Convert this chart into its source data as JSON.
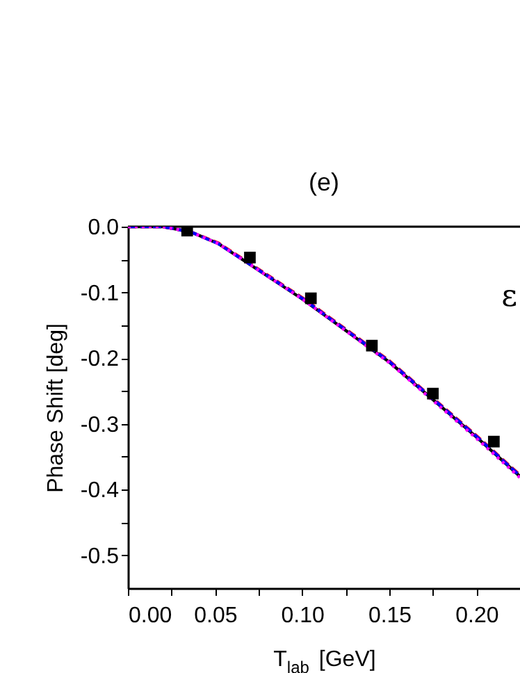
{
  "chart_data": {
    "type": "line",
    "title": "(e)",
    "xlabel": "T$_{lab}$ [GeV]",
    "ylabel": "Phase Shift [deg]",
    "annotations": [
      "ε"
    ],
    "xlim": [
      0,
      0.225
    ],
    "ylim": [
      -0.55,
      0
    ],
    "xticks": [
      {
        "value": 0,
        "label": "0.00"
      },
      {
        "value": 0.025,
        "label": null
      },
      {
        "value": 0.05,
        "label": "0.05"
      },
      {
        "value": 0.075,
        "label": null
      },
      {
        "value": 0.1,
        "label": "0.10"
      },
      {
        "value": 0.125,
        "label": null
      },
      {
        "value": 0.15,
        "label": "0.15"
      },
      {
        "value": 0.175,
        "label": null
      },
      {
        "value": 0.2,
        "label": "0.20"
      }
    ],
    "yticks": [
      {
        "value": 0,
        "label": "0.0"
      },
      {
        "value": -0.05,
        "label": null
      },
      -0.1,
      {
        "value": -0.15,
        "label": null
      },
      -0.2,
      {
        "value": -0.25,
        "label": null
      },
      -0.3,
      {
        "value": -0.35,
        "label": null
      },
      -0.4,
      {
        "value": -0.45,
        "label": null
      },
      -0.5
    ],
    "grid": false,
    "series": [
      {
        "type": "line",
        "color": "#000000",
        "line_style": "solid",
        "x": [
          0,
          0.02,
          0.036,
          0.052,
          0.1,
          0.15,
          0.2,
          0.225
        ],
        "values": [
          0,
          0,
          -0.008,
          -0.026,
          -0.11,
          -0.206,
          -0.32,
          -0.38
        ]
      },
      {
        "type": "line",
        "color": "#ff0000",
        "line_style": "dashed",
        "x": [
          0,
          0.02,
          0.036,
          0.052,
          0.1,
          0.15,
          0.2,
          0.225
        ],
        "values": [
          0,
          0,
          -0.008,
          -0.025,
          -0.108,
          -0.204,
          -0.318,
          -0.378
        ]
      },
      {
        "type": "line",
        "color": "#0000ff",
        "line_style": "dashed",
        "x": [
          0,
          0.02,
          0.036,
          0.052,
          0.1,
          0.15,
          0.2,
          0.225
        ],
        "values": [
          0,
          0,
          -0.008,
          -0.026,
          -0.109,
          -0.205,
          -0.319,
          -0.379
        ]
      },
      {
        "type": "line",
        "color": "#ff00ff",
        "line_style": "dotted",
        "x": [
          0,
          0.02,
          0.036,
          0.052,
          0.1,
          0.15,
          0.2,
          0.225
        ],
        "values": [
          0,
          0,
          -0.008,
          -0.026,
          -0.11,
          -0.207,
          -0.322,
          -0.382
        ]
      },
      {
        "type": "scatter",
        "color": "#000000",
        "marker": "square",
        "x": [
          0.034,
          0.07,
          0.105,
          0.14,
          0.175,
          0.21
        ],
        "values": [
          -0.006,
          -0.047,
          -0.109,
          -0.181,
          -0.254,
          -0.327
        ]
      }
    ]
  }
}
